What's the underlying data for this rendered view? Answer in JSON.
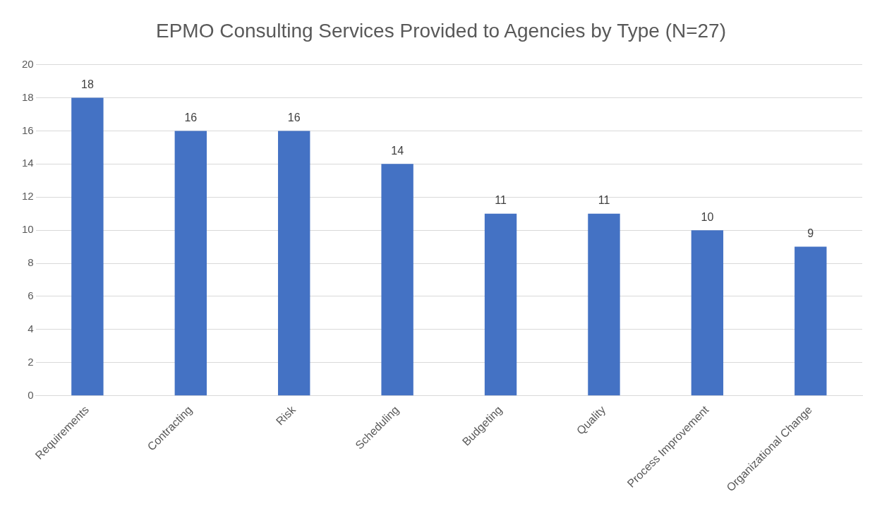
{
  "chart_data": {
    "type": "bar",
    "title": "EPMO Consulting Services Provided to Agencies by Type (N=27)",
    "categories": [
      "Requirements",
      "Contracting",
      "Risk",
      "Scheduling",
      "Budgeting",
      "Quality",
      "Process Improvement",
      "Organizational Change"
    ],
    "values": [
      18,
      16,
      16,
      14,
      11,
      11,
      10,
      9
    ],
    "color": "#4472c4",
    "ylim": [
      0,
      20
    ],
    "yticks": [
      0,
      2,
      4,
      6,
      8,
      10,
      12,
      14,
      16,
      18,
      20
    ],
    "grid": "y",
    "data_labels": true
  }
}
